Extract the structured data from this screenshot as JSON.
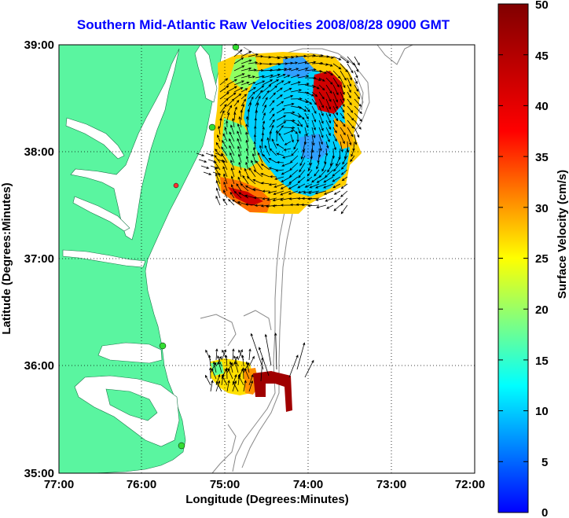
{
  "title": "Southern Mid-Atlantic Raw Velocities 2008/08/28 0900 GMT",
  "xlabel": "Longitude (Degrees:Minutes)",
  "ylabel": "Latitude (Degrees:Minutes)",
  "x_ticks": [
    "77:00",
    "76:00",
    "75:00",
    "74:00",
    "73:00",
    "72:00"
  ],
  "y_ticks": [
    "39:00",
    "38:00",
    "37:00",
    "36:00",
    "35:00"
  ],
  "colorbar": {
    "label": "Surface Velocity (cm/s)",
    "ticks": [
      "50",
      "45",
      "40",
      "35",
      "30",
      "25",
      "20",
      "15",
      "10",
      "5",
      "0"
    ]
  },
  "colors": {
    "land": "#5af5a0",
    "title": "#0000ff",
    "station": "#33dd33"
  }
}
